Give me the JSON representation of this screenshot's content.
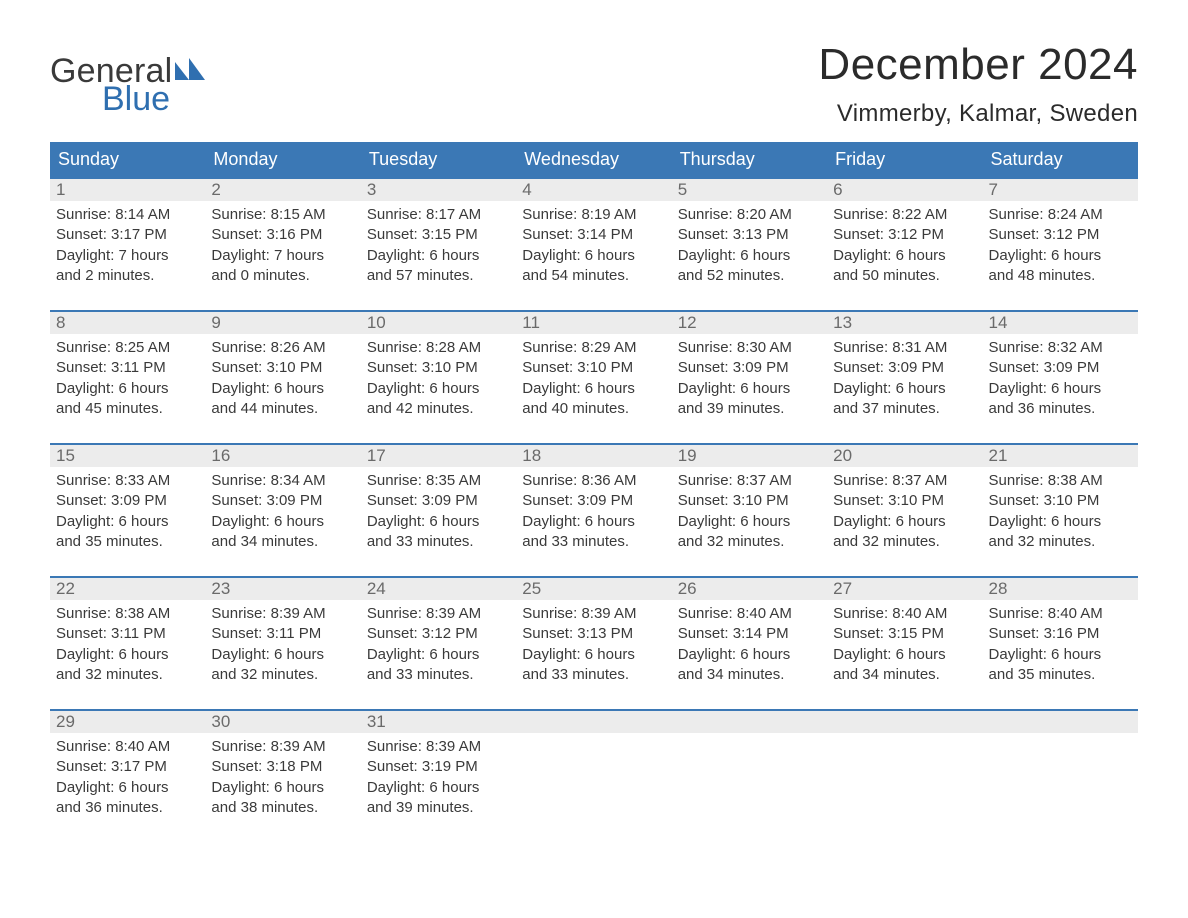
{
  "colors": {
    "header_bg": "#3b78b5",
    "header_text": "#ffffff",
    "daynum_bg": "#ececec",
    "daynum_text": "#6a6a6a",
    "body_text": "#3a3a3a",
    "logo_gray": "#3a3a3a",
    "logo_blue": "#2f6fb0",
    "week_border": "#3b78b5",
    "page_bg": "#ffffff"
  },
  "logo": {
    "word1": "General",
    "word2": "Blue"
  },
  "title": "December 2024",
  "subtitle": "Vimmerby, Kalmar, Sweden",
  "weekdays": [
    "Sunday",
    "Monday",
    "Tuesday",
    "Wednesday",
    "Thursday",
    "Friday",
    "Saturday"
  ],
  "labels": {
    "sunrise": "Sunrise:",
    "sunset": "Sunset:",
    "daylight": "Daylight:"
  },
  "weeks": [
    {
      "days": [
        {
          "n": "1",
          "sr": "8:14 AM",
          "ss": "3:17 PM",
          "dl1": "7 hours",
          "dl2": "and 2 minutes."
        },
        {
          "n": "2",
          "sr": "8:15 AM",
          "ss": "3:16 PM",
          "dl1": "7 hours",
          "dl2": "and 0 minutes."
        },
        {
          "n": "3",
          "sr": "8:17 AM",
          "ss": "3:15 PM",
          "dl1": "6 hours",
          "dl2": "and 57 minutes."
        },
        {
          "n": "4",
          "sr": "8:19 AM",
          "ss": "3:14 PM",
          "dl1": "6 hours",
          "dl2": "and 54 minutes."
        },
        {
          "n": "5",
          "sr": "8:20 AM",
          "ss": "3:13 PM",
          "dl1": "6 hours",
          "dl2": "and 52 minutes."
        },
        {
          "n": "6",
          "sr": "8:22 AM",
          "ss": "3:12 PM",
          "dl1": "6 hours",
          "dl2": "and 50 minutes."
        },
        {
          "n": "7",
          "sr": "8:24 AM",
          "ss": "3:12 PM",
          "dl1": "6 hours",
          "dl2": "and 48 minutes."
        }
      ]
    },
    {
      "days": [
        {
          "n": "8",
          "sr": "8:25 AM",
          "ss": "3:11 PM",
          "dl1": "6 hours",
          "dl2": "and 45 minutes."
        },
        {
          "n": "9",
          "sr": "8:26 AM",
          "ss": "3:10 PM",
          "dl1": "6 hours",
          "dl2": "and 44 minutes."
        },
        {
          "n": "10",
          "sr": "8:28 AM",
          "ss": "3:10 PM",
          "dl1": "6 hours",
          "dl2": "and 42 minutes."
        },
        {
          "n": "11",
          "sr": "8:29 AM",
          "ss": "3:10 PM",
          "dl1": "6 hours",
          "dl2": "and 40 minutes."
        },
        {
          "n": "12",
          "sr": "8:30 AM",
          "ss": "3:09 PM",
          "dl1": "6 hours",
          "dl2": "and 39 minutes."
        },
        {
          "n": "13",
          "sr": "8:31 AM",
          "ss": "3:09 PM",
          "dl1": "6 hours",
          "dl2": "and 37 minutes."
        },
        {
          "n": "14",
          "sr": "8:32 AM",
          "ss": "3:09 PM",
          "dl1": "6 hours",
          "dl2": "and 36 minutes."
        }
      ]
    },
    {
      "days": [
        {
          "n": "15",
          "sr": "8:33 AM",
          "ss": "3:09 PM",
          "dl1": "6 hours",
          "dl2": "and 35 minutes."
        },
        {
          "n": "16",
          "sr": "8:34 AM",
          "ss": "3:09 PM",
          "dl1": "6 hours",
          "dl2": "and 34 minutes."
        },
        {
          "n": "17",
          "sr": "8:35 AM",
          "ss": "3:09 PM",
          "dl1": "6 hours",
          "dl2": "and 33 minutes."
        },
        {
          "n": "18",
          "sr": "8:36 AM",
          "ss": "3:09 PM",
          "dl1": "6 hours",
          "dl2": "and 33 minutes."
        },
        {
          "n": "19",
          "sr": "8:37 AM",
          "ss": "3:10 PM",
          "dl1": "6 hours",
          "dl2": "and 32 minutes."
        },
        {
          "n": "20",
          "sr": "8:37 AM",
          "ss": "3:10 PM",
          "dl1": "6 hours",
          "dl2": "and 32 minutes."
        },
        {
          "n": "21",
          "sr": "8:38 AM",
          "ss": "3:10 PM",
          "dl1": "6 hours",
          "dl2": "and 32 minutes."
        }
      ]
    },
    {
      "days": [
        {
          "n": "22",
          "sr": "8:38 AM",
          "ss": "3:11 PM",
          "dl1": "6 hours",
          "dl2": "and 32 minutes."
        },
        {
          "n": "23",
          "sr": "8:39 AM",
          "ss": "3:11 PM",
          "dl1": "6 hours",
          "dl2": "and 32 minutes."
        },
        {
          "n": "24",
          "sr": "8:39 AM",
          "ss": "3:12 PM",
          "dl1": "6 hours",
          "dl2": "and 33 minutes."
        },
        {
          "n": "25",
          "sr": "8:39 AM",
          "ss": "3:13 PM",
          "dl1": "6 hours",
          "dl2": "and 33 minutes."
        },
        {
          "n": "26",
          "sr": "8:40 AM",
          "ss": "3:14 PM",
          "dl1": "6 hours",
          "dl2": "and 34 minutes."
        },
        {
          "n": "27",
          "sr": "8:40 AM",
          "ss": "3:15 PM",
          "dl1": "6 hours",
          "dl2": "and 34 minutes."
        },
        {
          "n": "28",
          "sr": "8:40 AM",
          "ss": "3:16 PM",
          "dl1": "6 hours",
          "dl2": "and 35 minutes."
        }
      ]
    },
    {
      "days": [
        {
          "n": "29",
          "sr": "8:40 AM",
          "ss": "3:17 PM",
          "dl1": "6 hours",
          "dl2": "and 36 minutes."
        },
        {
          "n": "30",
          "sr": "8:39 AM",
          "ss": "3:18 PM",
          "dl1": "6 hours",
          "dl2": "and 38 minutes."
        },
        {
          "n": "31",
          "sr": "8:39 AM",
          "ss": "3:19 PM",
          "dl1": "6 hours",
          "dl2": "and 39 minutes."
        },
        null,
        null,
        null,
        null
      ]
    }
  ]
}
